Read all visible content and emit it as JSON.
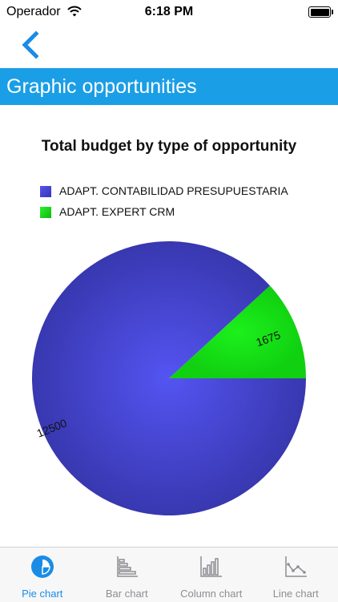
{
  "status_bar": {
    "carrier": "Operador",
    "time": "6:18 PM"
  },
  "nav": {
    "back_icon": "chevron-left-icon"
  },
  "header": {
    "title": "Graphic opportunities",
    "background_color": "#1a9ee6"
  },
  "chart_data": {
    "type": "pie",
    "title": "Total budget by type of opportunity",
    "legend_position": "top-left",
    "slices": [
      {
        "label": "ADAPT. CONTABILIDAD PRESUPUESTARIA",
        "value": 12500,
        "color": "#4646d8"
      },
      {
        "label": "ADAPT. EXPERT CRM",
        "value": 1675,
        "color": "#12dc12"
      }
    ]
  },
  "tabs": [
    {
      "label": "Pie chart",
      "icon": "pie-chart-icon",
      "active": true
    },
    {
      "label": "Bar chart",
      "icon": "bar-chart-icon",
      "active": false
    },
    {
      "label": "Column chart",
      "icon": "column-chart-icon",
      "active": false
    },
    {
      "label": "Line chart",
      "icon": "line-chart-icon",
      "active": false
    }
  ],
  "colors": {
    "accent": "#1a8ce6",
    "tab_inactive": "#8e8e93"
  }
}
